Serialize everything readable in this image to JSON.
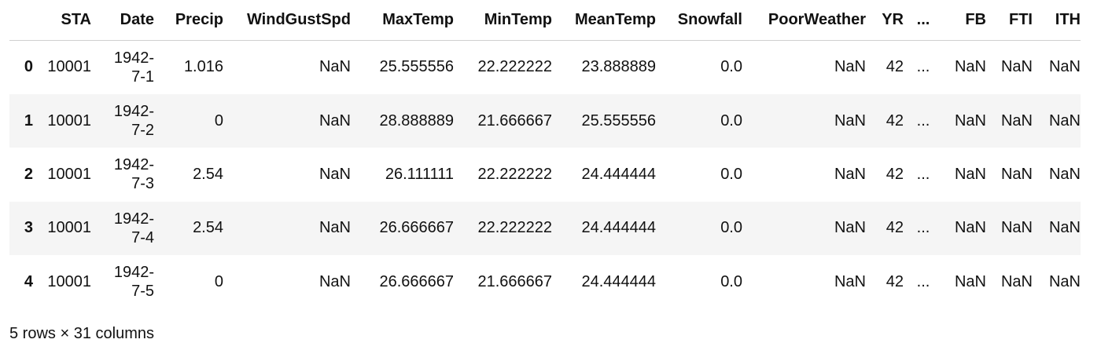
{
  "table": {
    "columns": [
      "",
      "STA",
      "Date",
      "Precip",
      "WindGustSpd",
      "MaxTemp",
      "MinTemp",
      "MeanTemp",
      "Snowfall",
      "PoorWeather",
      "YR",
      "...",
      "FB",
      "FTI",
      "ITH"
    ],
    "rows": [
      {
        "index": "0",
        "cells": [
          "10001",
          "1942-7-1",
          "1.016",
          "NaN",
          "25.555556",
          "22.222222",
          "23.888889",
          "0.0",
          "NaN",
          "42",
          "...",
          "NaN",
          "NaN",
          "NaN"
        ]
      },
      {
        "index": "1",
        "cells": [
          "10001",
          "1942-7-2",
          "0",
          "NaN",
          "28.888889",
          "21.666667",
          "25.555556",
          "0.0",
          "NaN",
          "42",
          "...",
          "NaN",
          "NaN",
          "NaN"
        ]
      },
      {
        "index": "2",
        "cells": [
          "10001",
          "1942-7-3",
          "2.54",
          "NaN",
          "26.111111",
          "22.222222",
          "24.444444",
          "0.0",
          "NaN",
          "42",
          "...",
          "NaN",
          "NaN",
          "NaN"
        ]
      },
      {
        "index": "3",
        "cells": [
          "10001",
          "1942-7-4",
          "2.54",
          "NaN",
          "26.666667",
          "22.222222",
          "24.444444",
          "0.0",
          "NaN",
          "42",
          "...",
          "NaN",
          "NaN",
          "NaN"
        ]
      },
      {
        "index": "4",
        "cells": [
          "10001",
          "1942-7-5",
          "0",
          "NaN",
          "26.666667",
          "21.666667",
          "24.444444",
          "0.0",
          "NaN",
          "42",
          "...",
          "NaN",
          "NaN",
          "NaN"
        ]
      }
    ]
  },
  "footer": {
    "shape_text": "5 rows × 31 columns"
  }
}
